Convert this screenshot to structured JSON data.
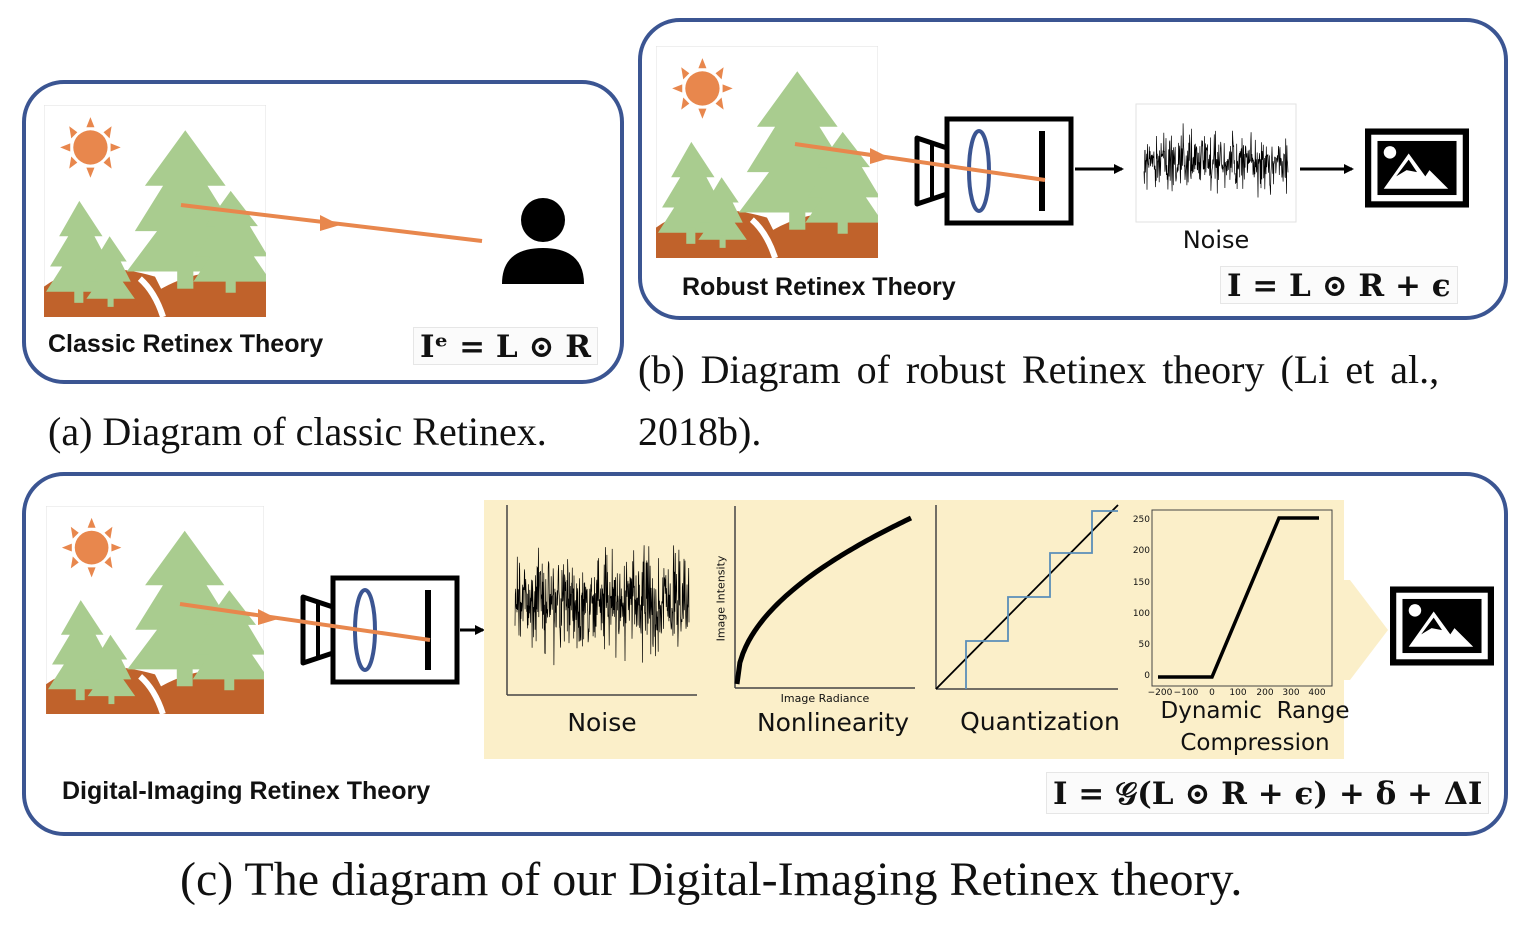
{
  "panel_a": {
    "title": "Classic Retinex Theory",
    "equation": "Iᵉ = L ⊙ R",
    "caption": "(a) Diagram of classic Retinex."
  },
  "panel_b": {
    "title": "Robust Retinex Theory",
    "noise_label": "Noise",
    "equation": "I = L ⊙ R + ϵ",
    "caption_line1": "(b) Diagram of robust Retinex theory (Li et al.,",
    "caption_line2": "2018b)."
  },
  "panel_c": {
    "title": "Digital-Imaging Retinex Theory",
    "equation": "I = 𝒢(L ⊙ R + ϵ) + δ + ΔI",
    "caption": "(c) The diagram of our Digital-Imaging Retinex theory.",
    "stages": {
      "noise": "Noise",
      "nonlinearity": "Nonlinearity",
      "quantization": "Quantization",
      "drc_line1": "Dynamic  Range",
      "drc_line2": "Compression"
    },
    "nonlinearity_xlabel": "Image Radiance",
    "nonlinearity_ylabel": "Image Intensity",
    "drc_yticks": [
      "250",
      "200",
      "150",
      "100",
      "50",
      "0"
    ],
    "drc_xticks": [
      "−200",
      "−100",
      "0",
      "100",
      "200",
      "300",
      "400"
    ]
  },
  "colors": {
    "panel_border": "#3b5592",
    "tree": "#a9cc8f",
    "sun": "#e8874d",
    "hill": "#c0622b",
    "ray": "#e8874d",
    "lens": "#3b5592",
    "beige": "#fbefc9",
    "quant_step": "#5b8fb9"
  }
}
